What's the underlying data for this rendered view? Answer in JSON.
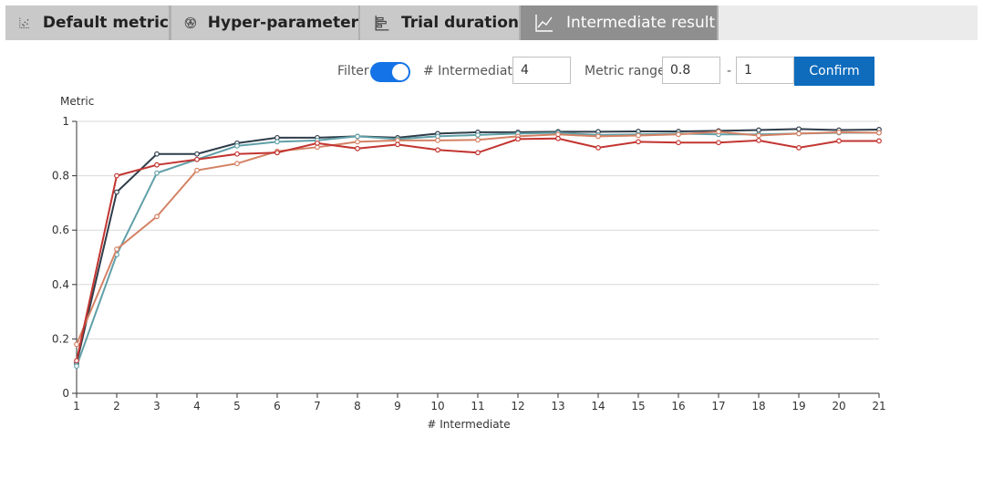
{
  "tabs": [
    {
      "label": "Default metric",
      "icon": "scatter-chart-icon",
      "active": false
    },
    {
      "label": "Hyper-parameter",
      "icon": "venn-circles-icon",
      "active": false
    },
    {
      "label": "Trial duration",
      "icon": "horizontal-bar-chart-icon",
      "active": false
    },
    {
      "label": "Intermediate result",
      "icon": "line-chart-icon",
      "active": true
    }
  ],
  "controls": {
    "filter_label": "Filter",
    "filter_on": true,
    "intermediate_label": "# Intermediate",
    "intermediate_value": "4",
    "metric_range_label": "Metric range",
    "range_min": "0.8",
    "range_separator": "-",
    "range_max": "1",
    "confirm_label": "Confirm"
  },
  "colors": {
    "accent": "#1473e6",
    "confirm": "#0f6cbd",
    "tab_active": "#8f8f8f",
    "tab_inactive": "#c9c9c9"
  },
  "chart_data": {
    "type": "line",
    "title": "",
    "xlabel": "# Intermediate",
    "ylabel": "Metric",
    "x": [
      1,
      2,
      3,
      4,
      5,
      6,
      7,
      8,
      9,
      10,
      11,
      12,
      13,
      14,
      15,
      16,
      17,
      18,
      19,
      20,
      21
    ],
    "xlim": [
      1,
      21
    ],
    "ylim": [
      0,
      1
    ],
    "yticks": [
      0,
      0.2,
      0.4,
      0.6,
      0.8,
      1
    ],
    "ytick_labels": [
      "0",
      "0.2",
      "0.4",
      "0.6",
      "0.8",
      "1"
    ],
    "grid": true,
    "legend": false,
    "series": [
      {
        "color": "#2f3d4a",
        "values": [
          0.11,
          0.74,
          0.88,
          0.88,
          0.92,
          0.94,
          0.94,
          0.945,
          0.94,
          0.955,
          0.96,
          0.96,
          0.962,
          0.962,
          0.963,
          0.963,
          0.965,
          0.968,
          0.972,
          0.968,
          0.97
        ]
      },
      {
        "color": "#61a0a8",
        "values": [
          0.1,
          0.51,
          0.81,
          0.86,
          0.91,
          0.925,
          0.93,
          0.945,
          0.935,
          0.945,
          0.95,
          0.955,
          0.958,
          0.95,
          0.952,
          0.955,
          0.952,
          0.952,
          0.955,
          0.958,
          0.958
        ]
      },
      {
        "color": "#d48265",
        "values": [
          0.18,
          0.53,
          0.65,
          0.82,
          0.845,
          0.89,
          0.905,
          0.925,
          0.93,
          0.93,
          0.932,
          0.945,
          0.952,
          0.945,
          0.948,
          0.952,
          0.962,
          0.948,
          0.955,
          0.96,
          0.958
        ]
      },
      {
        "color": "#c23531",
        "values": [
          0.12,
          0.8,
          0.84,
          0.86,
          0.88,
          0.885,
          0.92,
          0.9,
          0.915,
          0.895,
          0.885,
          0.935,
          0.937,
          0.903,
          0.925,
          0.922,
          0.922,
          0.93,
          0.903,
          0.928,
          0.928
        ]
      }
    ]
  }
}
